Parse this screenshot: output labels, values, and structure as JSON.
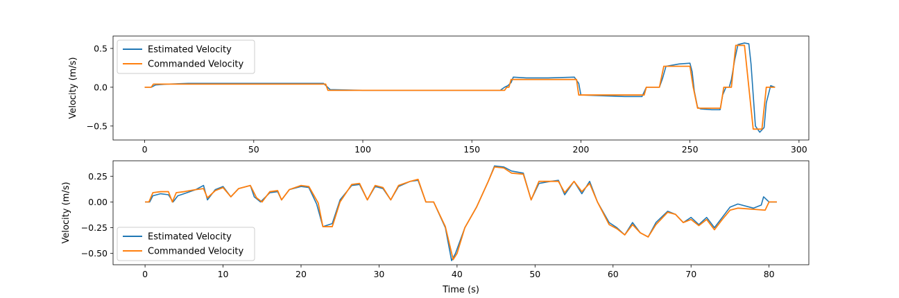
{
  "chart_data": [
    {
      "type": "line",
      "title": "",
      "xlabel": "",
      "ylabel": "Velocity (m/s)",
      "xlim": [
        -14.5,
        304.5
      ],
      "ylim": [
        -0.68,
        0.66
      ],
      "xticks": [
        0,
        50,
        100,
        150,
        200,
        250,
        300
      ],
      "yticks": [
        -0.5,
        0.0,
        0.5
      ],
      "ytick_labels": [
        "−0.5",
        "0.0",
        "0.5"
      ],
      "grid": false,
      "legend": "upper left",
      "colors": {
        "estimated": "#1f77b4",
        "commanded": "#ff7f0e"
      },
      "series": [
        {
          "name": "Estimated Velocity",
          "x": [
            0,
            3,
            5,
            10,
            20,
            40,
            60,
            82,
            83.5,
            85,
            100,
            120,
            140,
            163,
            165,
            166.5,
            168,
            169,
            175,
            185,
            197,
            199,
            200,
            210,
            220,
            228,
            230,
            232,
            236,
            237.5,
            239,
            245,
            250,
            251,
            252,
            253.5,
            255,
            260,
            263.8,
            265,
            266.5,
            268,
            269,
            270.5,
            272,
            275,
            277,
            278,
            279,
            280,
            282,
            284,
            285,
            287,
            289
          ],
          "y": [
            0,
            0,
            0.03,
            0.04,
            0.05,
            0.05,
            0.05,
            0.05,
            0.01,
            -0.03,
            -0.04,
            -0.04,
            -0.04,
            -0.04,
            0.0,
            0.02,
            0.06,
            0.13,
            0.12,
            0.12,
            0.13,
            0.05,
            -0.1,
            -0.11,
            -0.12,
            -0.12,
            0.0,
            0.0,
            0.0,
            0.12,
            0.27,
            0.3,
            0.31,
            0.2,
            -0.05,
            -0.26,
            -0.28,
            -0.29,
            -0.29,
            -0.1,
            0.0,
            0.0,
            0.1,
            0.35,
            0.55,
            0.57,
            0.56,
            0.3,
            -0.1,
            -0.5,
            -0.58,
            -0.52,
            -0.2,
            0.02,
            0.0
          ]
        },
        {
          "name": "Commanded Velocity",
          "x": [
            0,
            3,
            4,
            83,
            84,
            165,
            166,
            167,
            168,
            198,
            199,
            229,
            230,
            236,
            238,
            250,
            251.5,
            253.5,
            264,
            265.5,
            269,
            271,
            275,
            277,
            279,
            283,
            284,
            285,
            289
          ],
          "y": [
            0,
            0,
            0.04,
            0.04,
            -0.04,
            -0.04,
            0.0,
            0.0,
            0.1,
            0.1,
            -0.1,
            -0.1,
            0.0,
            0.0,
            0.27,
            0.27,
            0.0,
            -0.27,
            -0.27,
            0.0,
            0.0,
            0.54,
            0.54,
            0.0,
            -0.54,
            -0.54,
            -0.27,
            0.0,
            0.0
          ]
        }
      ]
    },
    {
      "type": "line",
      "title": "",
      "xlabel": "Time (s)",
      "ylabel": "Velocity (m/s)",
      "xlim": [
        -4.1,
        85.1
      ],
      "ylim": [
        -0.61,
        0.4
      ],
      "xticks": [
        0,
        10,
        20,
        30,
        40,
        50,
        60,
        70,
        80
      ],
      "yticks": [
        -0.5,
        -0.25,
        0.0,
        0.25
      ],
      "ytick_labels": [
        "−0.50",
        "−0.25",
        "0.00",
        "0.25"
      ],
      "grid": false,
      "legend": "lower left",
      "colors": {
        "estimated": "#1f77b4",
        "commanded": "#ff7f0e"
      },
      "series": [
        {
          "name": "Estimated Velocity",
          "x": [
            0,
            0.6,
            1,
            2,
            3,
            3.6,
            4.2,
            5,
            6.5,
            7.5,
            8,
            9,
            10,
            11,
            12,
            13.5,
            14,
            14.8,
            16,
            17,
            17.5,
            18.5,
            20,
            21,
            22,
            22.8,
            24,
            25,
            26.5,
            27.5,
            28.5,
            29.5,
            30.5,
            31.5,
            32.5,
            34,
            35,
            36,
            37,
            38.5,
            39.3,
            39.8,
            41,
            42.5,
            44,
            44.8,
            46,
            47,
            48.5,
            49.5,
            50.5,
            52,
            53,
            53.8,
            55,
            56,
            57,
            58,
            59.5,
            60.5,
            61.5,
            62.5,
            63.5,
            64.5,
            65.5,
            67,
            68,
            69,
            70,
            71,
            72,
            73,
            74,
            75,
            76,
            78,
            79,
            79.3,
            80,
            81
          ],
          "y": [
            0,
            0,
            0.06,
            0.08,
            0.07,
            0,
            0.06,
            0.08,
            0.12,
            0.16,
            0.02,
            0.12,
            0.15,
            0.05,
            0.13,
            0.16,
            0.05,
            0,
            0.09,
            0.1,
            0.02,
            0.12,
            0.15,
            0.14,
            -0.02,
            -0.24,
            -0.21,
            0.02,
            0.16,
            0.17,
            0.02,
            0.15,
            0.13,
            0.02,
            0.15,
            0.2,
            0.21,
            0.0,
            0.0,
            -0.25,
            -0.57,
            -0.5,
            -0.25,
            -0.05,
            0.2,
            0.35,
            0.34,
            0.3,
            0.28,
            0.02,
            0.18,
            0.2,
            0.21,
            0.07,
            0.2,
            0.08,
            0.2,
            0.0,
            -0.2,
            -0.25,
            -0.32,
            -0.2,
            -0.3,
            -0.34,
            -0.2,
            -0.09,
            -0.12,
            -0.2,
            -0.15,
            -0.22,
            -0.15,
            -0.25,
            -0.15,
            -0.05,
            -0.02,
            -0.06,
            -0.03,
            0.05,
            0.0,
            0.0
          ]
        },
        {
          "name": "Commanded Velocity",
          "x": [
            0,
            0.5,
            1,
            2,
            3,
            3.5,
            4,
            5,
            6.5,
            7.5,
            8,
            9,
            10,
            11,
            12,
            13.5,
            14.3,
            15,
            16,
            17,
            17.5,
            18.5,
            20,
            21,
            22.2,
            22.8,
            24,
            25,
            26.5,
            27.5,
            28.5,
            29.5,
            30.5,
            31.5,
            32.5,
            34,
            35,
            36,
            37,
            38.5,
            39.5,
            40,
            41,
            42.5,
            44,
            44.8,
            46,
            47,
            48.5,
            49.5,
            50.5,
            52,
            53,
            53.8,
            55,
            56,
            57,
            58,
            59.5,
            60.5,
            61.5,
            62.5,
            63.5,
            64.5,
            65.5,
            67,
            68,
            69,
            70,
            71,
            72,
            73,
            74,
            75,
            76,
            79.5,
            80,
            81
          ],
          "y": [
            0,
            0,
            0.09,
            0.1,
            0.1,
            0,
            0.09,
            0.1,
            0.12,
            0.13,
            0.04,
            0.11,
            0.14,
            0.05,
            0.13,
            0.16,
            0.04,
            0,
            0.1,
            0.11,
            0.02,
            0.12,
            0.16,
            0.15,
            -0.01,
            -0.24,
            -0.24,
            0.0,
            0.17,
            0.18,
            0.02,
            0.16,
            0.14,
            0.02,
            0.16,
            0.2,
            0.22,
            0.0,
            0.0,
            -0.24,
            -0.56,
            -0.5,
            -0.25,
            -0.05,
            0.2,
            0.34,
            0.33,
            0.28,
            0.27,
            0.02,
            0.2,
            0.2,
            0.2,
            0.09,
            0.2,
            0.1,
            0.18,
            0.0,
            -0.22,
            -0.26,
            -0.32,
            -0.22,
            -0.3,
            -0.34,
            -0.22,
            -0.1,
            -0.12,
            -0.2,
            -0.17,
            -0.23,
            -0.17,
            -0.27,
            -0.17,
            -0.08,
            -0.06,
            -0.08,
            0.0,
            0.0
          ]
        }
      ]
    }
  ]
}
